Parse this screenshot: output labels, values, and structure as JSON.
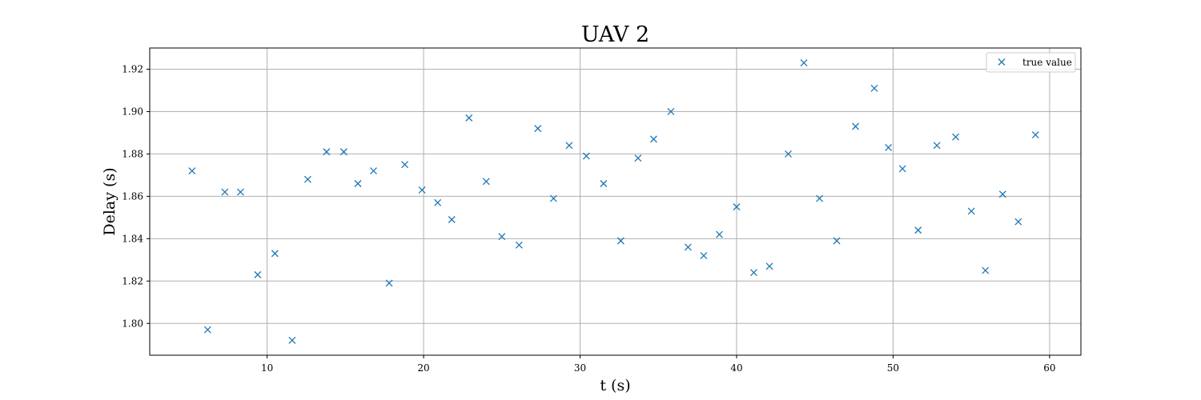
{
  "chart_data": {
    "type": "scatter",
    "title": "UAV 2",
    "xlabel": "t (s)",
    "ylabel": "Delay (s)",
    "xlim": [
      2.5,
      62
    ],
    "ylim": [
      1.785,
      1.93
    ],
    "x_ticks": [
      10,
      20,
      30,
      40,
      50,
      60
    ],
    "y_ticks": [
      1.8,
      1.82,
      1.84,
      1.86,
      1.88,
      1.9,
      1.92
    ],
    "x_tick_labels": [
      "10",
      "20",
      "30",
      "40",
      "50",
      "60"
    ],
    "y_tick_labels": [
      "1.80",
      "1.82",
      "1.84",
      "1.86",
      "1.88",
      "1.90",
      "1.92"
    ],
    "grid": true,
    "legend_position": "top-right",
    "marker": "x",
    "color": "#1f77b4",
    "series": [
      {
        "name": "true value",
        "points": [
          [
            5.2,
            1.872
          ],
          [
            6.2,
            1.797
          ],
          [
            7.3,
            1.862
          ],
          [
            8.3,
            1.862
          ],
          [
            9.4,
            1.823
          ],
          [
            10.5,
            1.833
          ],
          [
            11.6,
            1.792
          ],
          [
            12.6,
            1.868
          ],
          [
            13.8,
            1.881
          ],
          [
            14.9,
            1.881
          ],
          [
            15.8,
            1.866
          ],
          [
            16.8,
            1.872
          ],
          [
            17.8,
            1.819
          ],
          [
            18.8,
            1.875
          ],
          [
            19.9,
            1.863
          ],
          [
            20.9,
            1.857
          ],
          [
            21.8,
            1.849
          ],
          [
            22.9,
            1.897
          ],
          [
            24.0,
            1.867
          ],
          [
            25.0,
            1.841
          ],
          [
            26.1,
            1.837
          ],
          [
            27.3,
            1.892
          ],
          [
            28.3,
            1.859
          ],
          [
            29.3,
            1.884
          ],
          [
            30.4,
            1.879
          ],
          [
            31.5,
            1.866
          ],
          [
            32.6,
            1.839
          ],
          [
            33.7,
            1.878
          ],
          [
            34.7,
            1.887
          ],
          [
            35.8,
            1.9
          ],
          [
            36.9,
            1.836
          ],
          [
            37.9,
            1.832
          ],
          [
            38.9,
            1.842
          ],
          [
            40.0,
            1.855
          ],
          [
            41.1,
            1.824
          ],
          [
            42.1,
            1.827
          ],
          [
            43.3,
            1.88
          ],
          [
            44.3,
            1.923
          ],
          [
            45.3,
            1.859
          ],
          [
            46.4,
            1.839
          ],
          [
            47.6,
            1.893
          ],
          [
            48.8,
            1.911
          ],
          [
            49.7,
            1.883
          ],
          [
            50.6,
            1.873
          ],
          [
            51.6,
            1.844
          ],
          [
            52.8,
            1.884
          ],
          [
            54.0,
            1.888
          ],
          [
            55.0,
            1.853
          ],
          [
            55.9,
            1.825
          ],
          [
            57.0,
            1.861
          ],
          [
            58.0,
            1.848
          ],
          [
            59.1,
            1.889
          ]
        ]
      }
    ]
  }
}
